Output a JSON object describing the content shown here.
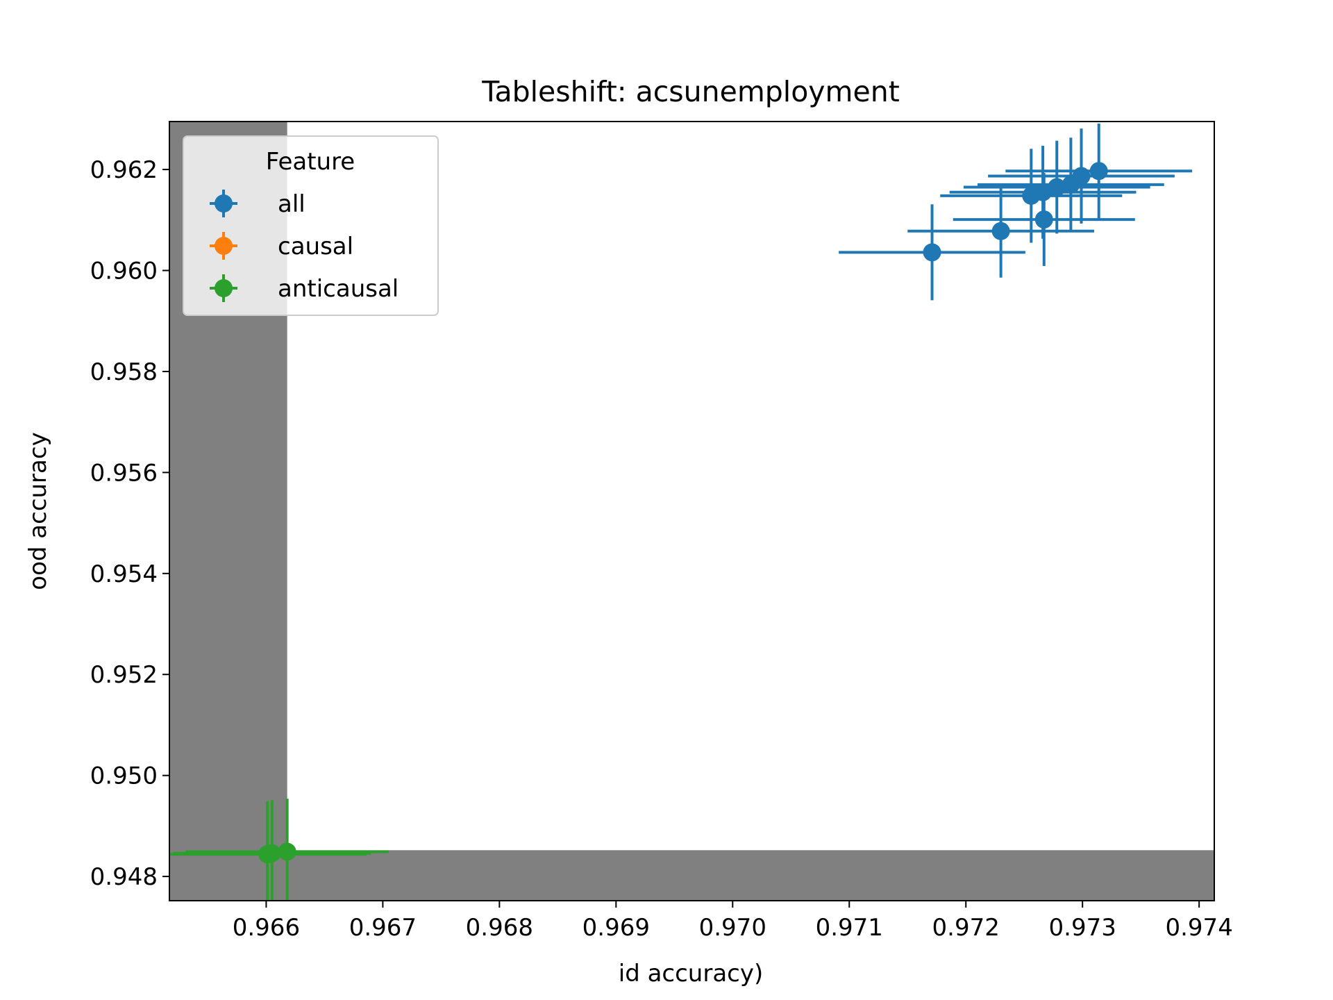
{
  "chart_data": {
    "type": "scatter",
    "title": "Tableshift: acsunemployment",
    "xlabel": "id accuracy)",
    "ylabel": "ood accuracy",
    "xlim": [
      0.96517,
      0.97413
    ],
    "ylim": [
      0.94752,
      0.96295
    ],
    "xticks": [
      "0.966",
      "0.967",
      "0.968",
      "0.969",
      "0.970",
      "0.971",
      "0.972",
      "0.973",
      "0.974"
    ],
    "yticks": [
      "0.948",
      "0.950",
      "0.952",
      "0.954",
      "0.956",
      "0.958",
      "0.960",
      "0.962"
    ],
    "grid": false,
    "legend": {
      "title": "Feature",
      "placement": "upper-left"
    },
    "shaded_regions": [
      {
        "x": [
          0.96517,
          0.96618
        ],
        "y": [
          0.94752,
          0.96295
        ],
        "color": "#808080"
      },
      {
        "x": [
          0.96517,
          0.97413
        ],
        "y": [
          0.94752,
          0.94852
        ],
        "color": "#808080"
      }
    ],
    "series": [
      {
        "name": "all",
        "color": "#1f77b4",
        "points": [
          {
            "x": 0.97171,
            "y": 0.96036,
            "xerr": 0.0008,
            "yerr": 0.00095
          },
          {
            "x": 0.9723,
            "y": 0.96078,
            "xerr": 0.0008,
            "yerr": 0.00092
          },
          {
            "x": 0.97267,
            "y": 0.96101,
            "xerr": 0.00078,
            "yerr": 0.00092
          },
          {
            "x": 0.97256,
            "y": 0.96148,
            "xerr": 0.00078,
            "yerr": 0.00093
          },
          {
            "x": 0.97266,
            "y": 0.96155,
            "xerr": 0.0008,
            "yerr": 0.00092
          },
          {
            "x": 0.97278,
            "y": 0.96165,
            "xerr": 0.0008,
            "yerr": 0.00092
          },
          {
            "x": 0.9729,
            "y": 0.9617,
            "xerr": 0.0008,
            "yerr": 0.00093
          },
          {
            "x": 0.97299,
            "y": 0.96187,
            "xerr": 0.0008,
            "yerr": 0.00094
          },
          {
            "x": 0.97314,
            "y": 0.96197,
            "xerr": 0.0008,
            "yerr": 0.00094
          }
        ]
      },
      {
        "name": "causal",
        "color": "#ff7f0e",
        "points": []
      },
      {
        "name": "anticausal",
        "color": "#2ca02c",
        "points": [
          {
            "x": 0.96601,
            "y": 0.94844,
            "xerr": 0.00085,
            "yerr": 0.00105
          },
          {
            "x": 0.96605,
            "y": 0.94846,
            "xerr": 0.00085,
            "yerr": 0.00105
          },
          {
            "x": 0.96618,
            "y": 0.94849,
            "xerr": 0.00087,
            "yerr": 0.00105
          }
        ]
      }
    ]
  }
}
